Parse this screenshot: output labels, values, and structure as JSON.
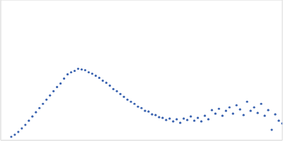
{
  "chart_data": {
    "type": "scatter",
    "color": "#3a63b0",
    "marker": "circle",
    "grid": true,
    "tick_labels": false,
    "xlim": [
      0,
      4
    ],
    "xticks": [
      1.15
    ],
    "ylim": [
      0,
      2
    ],
    "yticks": [
      1
    ],
    "x": [
      0.15,
      0.2,
      0.25,
      0.3,
      0.35,
      0.4,
      0.45,
      0.5,
      0.55,
      0.6,
      0.65,
      0.7,
      0.75,
      0.8,
      0.85,
      0.9,
      0.95,
      1.0,
      1.05,
      1.1,
      1.15,
      1.2,
      1.25,
      1.3,
      1.35,
      1.4,
      1.45,
      1.5,
      1.55,
      1.6,
      1.65,
      1.7,
      1.75,
      1.8,
      1.85,
      1.9,
      1.95,
      2.0,
      2.05,
      2.1,
      2.15,
      2.2,
      2.25,
      2.3,
      2.35,
      2.4,
      2.45,
      2.5,
      2.55,
      2.6,
      2.65,
      2.7,
      2.75,
      2.8,
      2.85,
      2.9,
      2.95,
      3.0,
      3.05,
      3.1,
      3.15,
      3.2,
      3.25,
      3.3,
      3.35,
      3.4,
      3.45,
      3.5,
      3.55,
      3.6,
      3.65,
      3.7,
      3.75,
      3.8,
      3.85,
      3.9,
      3.95,
      4.0
    ],
    "values": [
      0.05,
      0.08,
      0.12,
      0.17,
      0.22,
      0.28,
      0.34,
      0.4,
      0.46,
      0.52,
      0.58,
      0.64,
      0.7,
      0.76,
      0.81,
      0.88,
      0.94,
      0.97,
      0.99,
      1.02,
      1.01,
      1.0,
      0.97,
      0.95,
      0.92,
      0.89,
      0.85,
      0.82,
      0.78,
      0.73,
      0.7,
      0.66,
      0.62,
      0.58,
      0.55,
      0.52,
      0.48,
      0.46,
      0.42,
      0.41,
      0.37,
      0.36,
      0.33,
      0.32,
      0.29,
      0.31,
      0.27,
      0.3,
      0.25,
      0.31,
      0.29,
      0.34,
      0.28,
      0.32,
      0.27,
      0.35,
      0.3,
      0.43,
      0.38,
      0.45,
      0.35,
      0.42,
      0.47,
      0.38,
      0.5,
      0.44,
      0.36,
      0.55,
      0.42,
      0.47,
      0.39,
      0.52,
      0.35,
      0.43,
      0.15,
      0.37,
      0.28,
      0.24
    ]
  }
}
